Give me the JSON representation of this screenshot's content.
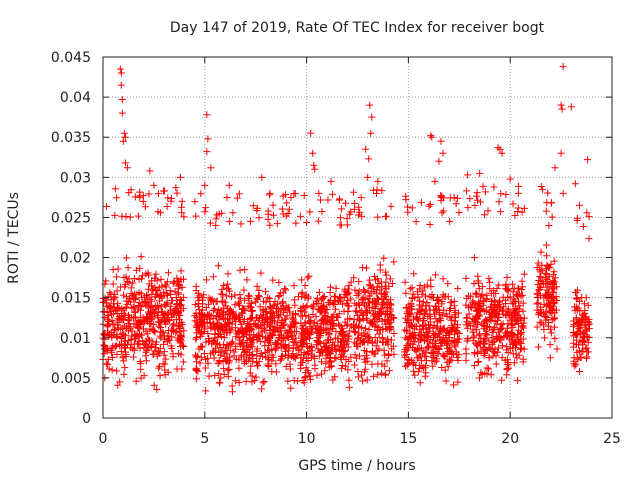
{
  "chart_data": {
    "type": "scatter",
    "title": "Day 147 of 2019, Rate Of TEC Index for receiver bogt",
    "xlabel": "GPS time / hours",
    "ylabel": "ROTI / TECUs",
    "xlim": [
      0,
      25
    ],
    "ylim": [
      0,
      0.045
    ],
    "xticks": [
      0,
      5,
      10,
      15,
      20,
      25
    ],
    "xtick_labels": [
      "0",
      "5",
      "10",
      "15",
      "20",
      "25"
    ],
    "yticks": [
      0,
      0.005,
      0.01,
      0.015,
      0.02,
      0.025,
      0.03,
      0.035,
      0.04,
      0.045
    ],
    "ytick_labels": [
      "0",
      "0.005",
      "0.01",
      "0.015",
      "0.02",
      "0.025",
      "0.03",
      "0.035",
      "0.04",
      "0.045"
    ],
    "grid": true,
    "marker": "+",
    "color": "#ff0000",
    "series": [
      {
        "name": "ROTI",
        "density_segments": [
          {
            "x_start": 0.0,
            "x_end": 4.0,
            "y_low": 0.003,
            "y_high": 0.025,
            "y_center": 0.012
          },
          {
            "x_start": 4.5,
            "x_end": 12.2,
            "y_low": 0.003,
            "y_high": 0.024,
            "y_center": 0.011
          },
          {
            "x_start": 12.3,
            "x_end": 14.3,
            "y_low": 0.003,
            "y_high": 0.025,
            "y_center": 0.012
          },
          {
            "x_start": 14.8,
            "x_end": 17.5,
            "y_low": 0.004,
            "y_high": 0.024,
            "y_center": 0.011
          },
          {
            "x_start": 17.8,
            "x_end": 20.7,
            "y_low": 0.004,
            "y_high": 0.025,
            "y_center": 0.012
          },
          {
            "x_start": 21.3,
            "x_end": 22.3,
            "y_low": 0.005,
            "y_high": 0.025,
            "y_center": 0.015
          },
          {
            "x_start": 23.1,
            "x_end": 23.9,
            "y_low": 0.005,
            "y_high": 0.022,
            "y_center": 0.011
          }
        ],
        "notable_points": [
          {
            "x": 0.5,
            "y": 0.0185
          },
          {
            "x": 0.85,
            "y": 0.0435
          },
          {
            "x": 0.9,
            "y": 0.043
          },
          {
            "x": 0.9,
            "y": 0.0415
          },
          {
            "x": 0.95,
            "y": 0.0397
          },
          {
            "x": 0.95,
            "y": 0.038
          },
          {
            "x": 1.05,
            "y": 0.0355
          },
          {
            "x": 1.1,
            "y": 0.035
          },
          {
            "x": 1.0,
            "y": 0.0345
          },
          {
            "x": 1.1,
            "y": 0.0318
          },
          {
            "x": 1.2,
            "y": 0.0312
          },
          {
            "x": 1.8,
            "y": 0.0275
          },
          {
            "x": 2.3,
            "y": 0.0308
          },
          {
            "x": 2.5,
            "y": 0.029
          },
          {
            "x": 3.8,
            "y": 0.03
          },
          {
            "x": 5.0,
            "y": 0.029
          },
          {
            "x": 5.1,
            "y": 0.0378
          },
          {
            "x": 5.15,
            "y": 0.0348
          },
          {
            "x": 5.1,
            "y": 0.0332
          },
          {
            "x": 5.3,
            "y": 0.0312
          },
          {
            "x": 6.2,
            "y": 0.029
          },
          {
            "x": 7.8,
            "y": 0.03
          },
          {
            "x": 8.2,
            "y": 0.028
          },
          {
            "x": 10.2,
            "y": 0.0355
          },
          {
            "x": 10.3,
            "y": 0.033
          },
          {
            "x": 10.35,
            "y": 0.0315
          },
          {
            "x": 10.4,
            "y": 0.031
          },
          {
            "x": 10.6,
            "y": 0.028
          },
          {
            "x": 11.2,
            "y": 0.0295
          },
          {
            "x": 13.1,
            "y": 0.039
          },
          {
            "x": 13.2,
            "y": 0.0375
          },
          {
            "x": 13.15,
            "y": 0.0355
          },
          {
            "x": 12.9,
            "y": 0.0335
          },
          {
            "x": 13.05,
            "y": 0.0323
          },
          {
            "x": 13.0,
            "y": 0.03
          },
          {
            "x": 13.5,
            "y": 0.0295
          },
          {
            "x": 16.1,
            "y": 0.0352
          },
          {
            "x": 16.15,
            "y": 0.035
          },
          {
            "x": 16.6,
            "y": 0.0345
          },
          {
            "x": 16.7,
            "y": 0.033
          },
          {
            "x": 16.5,
            "y": 0.032
          },
          {
            "x": 16.3,
            "y": 0.0295
          },
          {
            "x": 16.6,
            "y": 0.0275
          },
          {
            "x": 17.9,
            "y": 0.0303
          },
          {
            "x": 18.5,
            "y": 0.0305
          },
          {
            "x": 19.4,
            "y": 0.0337
          },
          {
            "x": 19.5,
            "y": 0.0335
          },
          {
            "x": 19.6,
            "y": 0.033
          },
          {
            "x": 19.2,
            "y": 0.0288
          },
          {
            "x": 20.0,
            "y": 0.0298
          },
          {
            "x": 20.4,
            "y": 0.028
          },
          {
            "x": 22.2,
            "y": 0.0312
          },
          {
            "x": 22.6,
            "y": 0.0438
          },
          {
            "x": 22.5,
            "y": 0.039
          },
          {
            "x": 22.55,
            "y": 0.0385
          },
          {
            "x": 23.0,
            "y": 0.0388
          },
          {
            "x": 22.5,
            "y": 0.033
          },
          {
            "x": 23.2,
            "y": 0.0292
          },
          {
            "x": 23.8,
            "y": 0.0322
          },
          {
            "x": 23.4,
            "y": 0.0265
          },
          {
            "x": 22.6,
            "y": 0.028
          },
          {
            "x": 21.9,
            "y": 0.024
          }
        ]
      }
    ]
  }
}
